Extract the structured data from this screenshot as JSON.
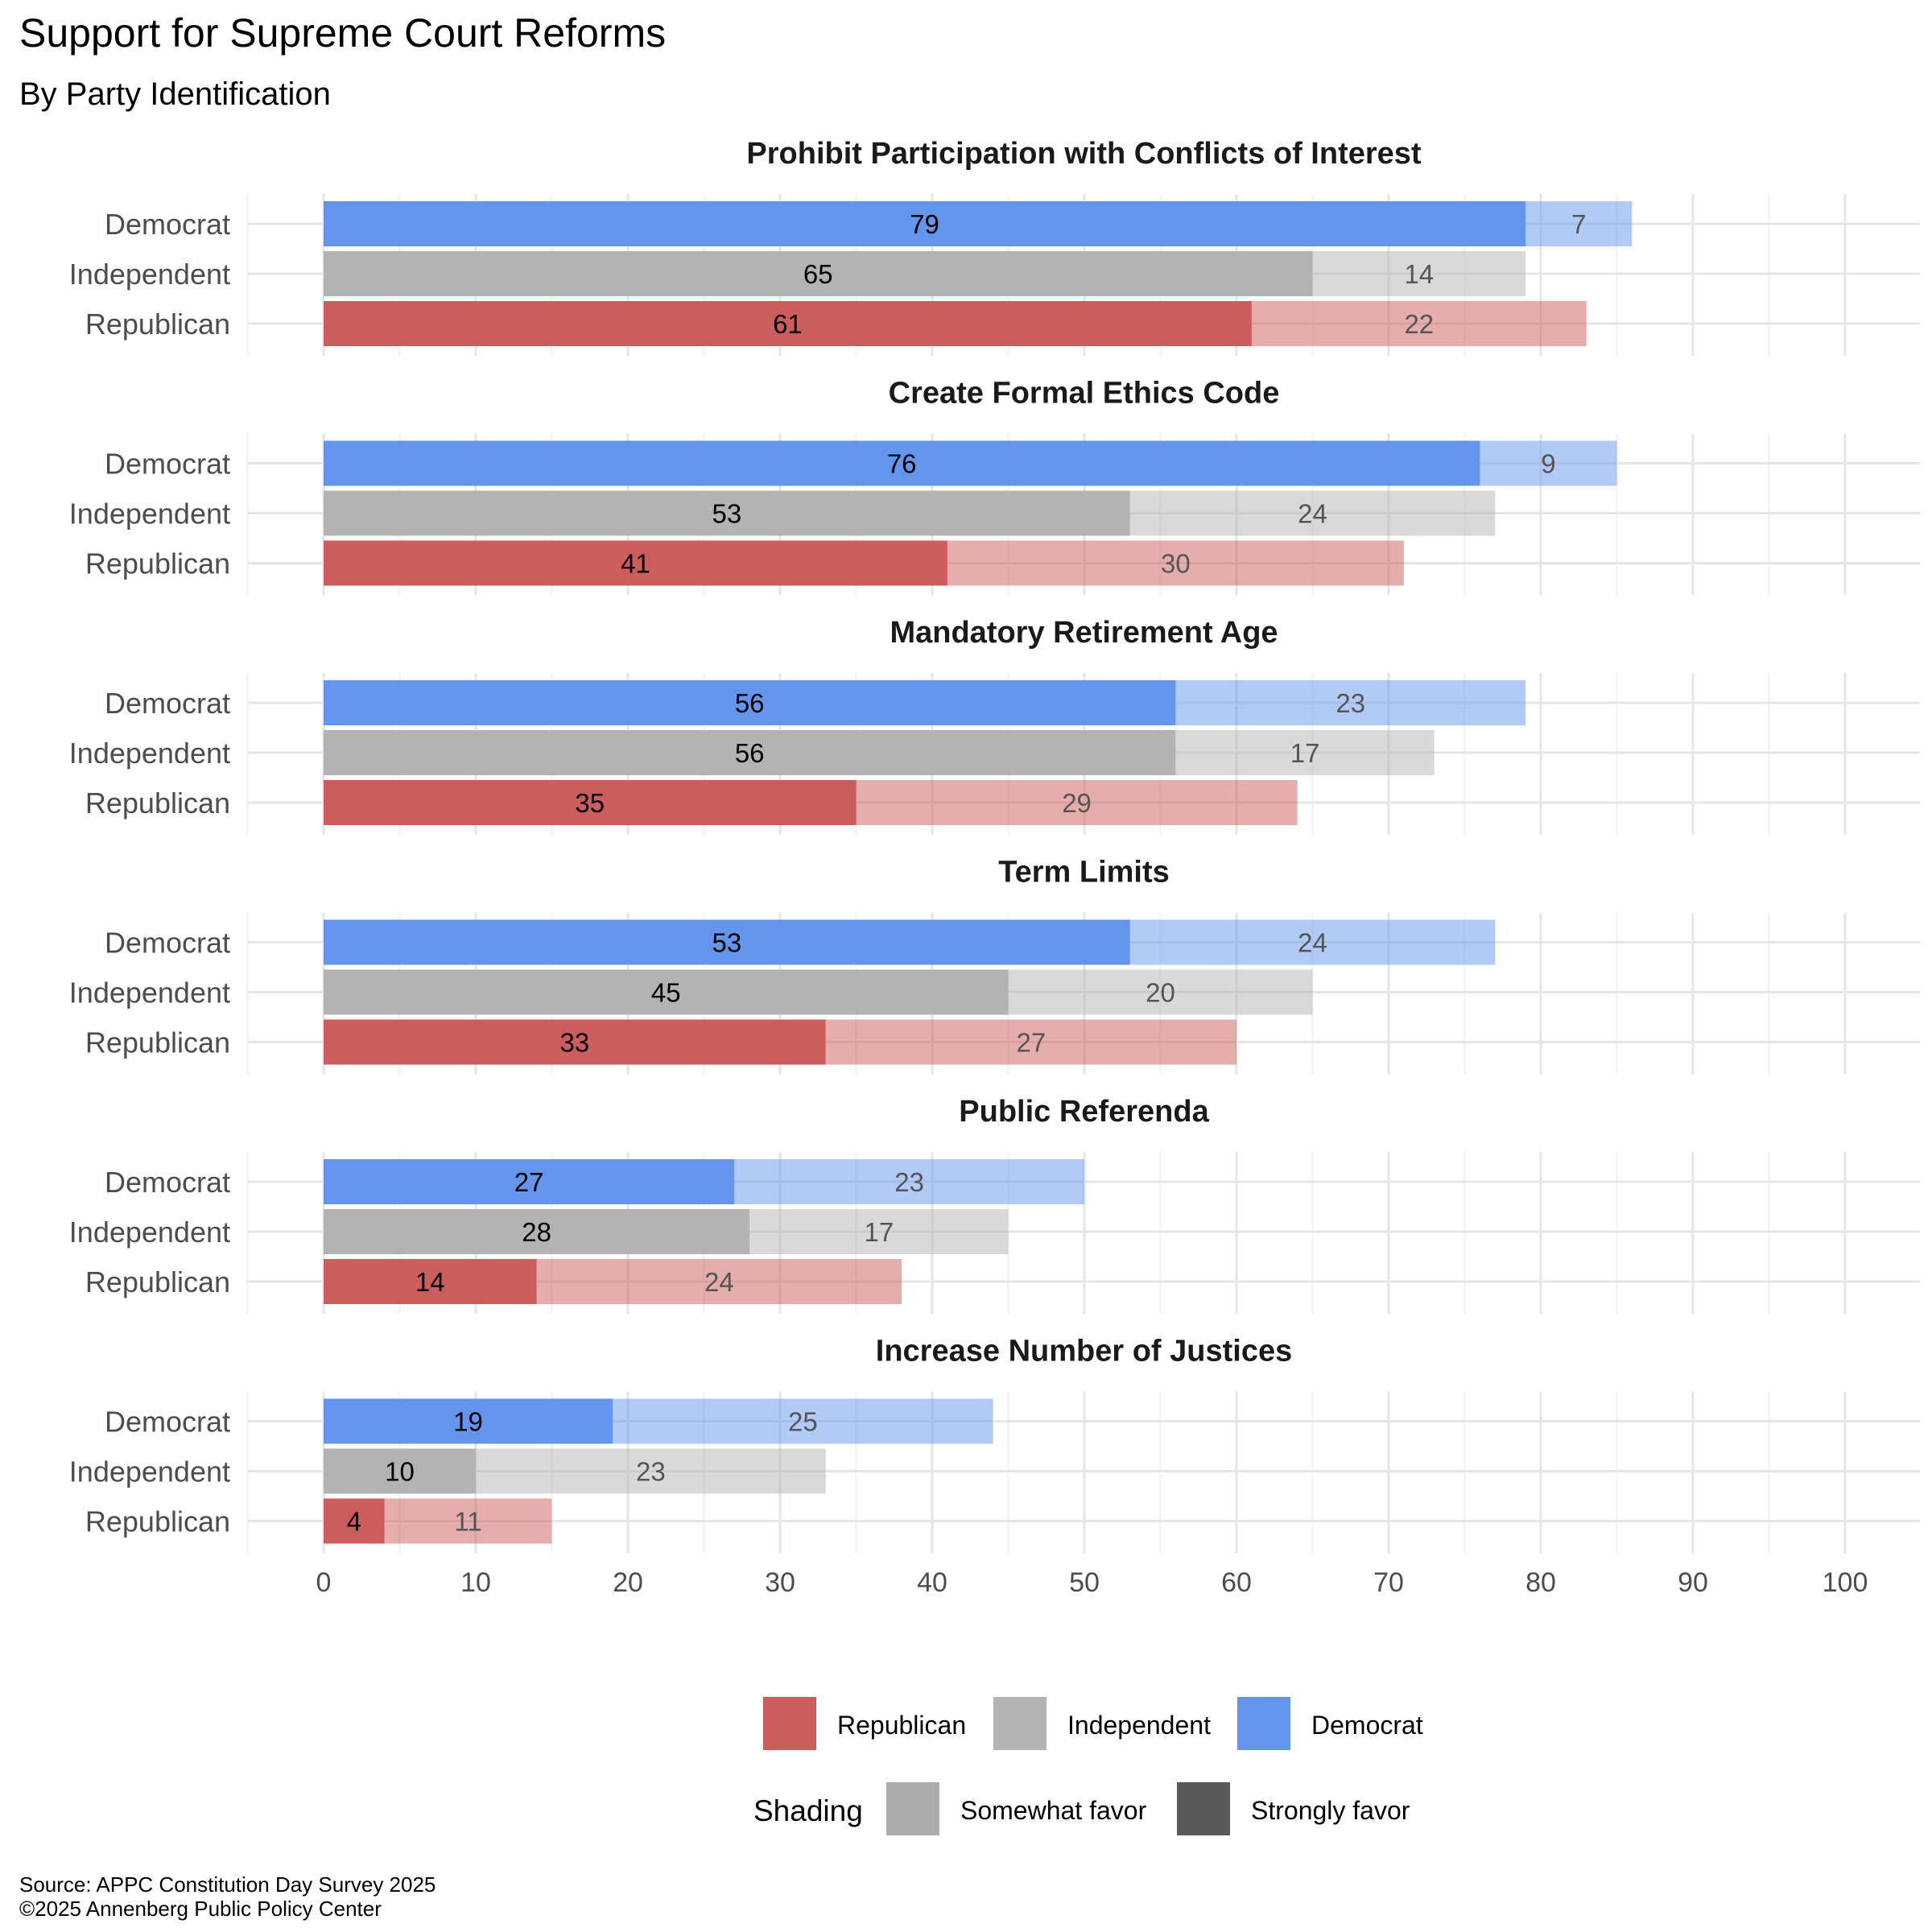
{
  "chart_data": {
    "type": "bar",
    "orientation": "horizontal",
    "stacked": true,
    "title": "Support for Supreme Court Reforms",
    "subtitle": "By Party Identification",
    "caption_lines": [
      "Source: APPC Constitution Day Survey 2025",
      "©2025 Annenberg Public Policy Center"
    ],
    "xlim": [
      0,
      100
    ],
    "x_ticks": [
      0,
      10,
      20,
      30,
      40,
      50,
      60,
      70,
      80,
      90,
      100
    ],
    "grid": true,
    "colors": {
      "Republican": "#cd5c5c",
      "Independent": "#b3b3b3",
      "Democrat": "#6495ed"
    },
    "legend": {
      "position": "bottom",
      "party_entries": [
        "Republican",
        "Independent",
        "Democrat"
      ],
      "shading_title": "Shading",
      "shading_entries": [
        {
          "label": "Somewhat favor",
          "color": "#ababab"
        },
        {
          "label": "Strongly favor",
          "color": "#595959"
        }
      ]
    },
    "categories": [
      "Democrat",
      "Independent",
      "Republican"
    ],
    "panels": [
      {
        "title": "Prohibit Participation with Conflicts of Interest",
        "strongly_favor": [
          79,
          65,
          61
        ],
        "somewhat_favor": [
          7,
          14,
          22
        ]
      },
      {
        "title": "Create Formal Ethics Code",
        "strongly_favor": [
          76,
          53,
          41
        ],
        "somewhat_favor": [
          9,
          24,
          30
        ]
      },
      {
        "title": "Mandatory Retirement Age",
        "strongly_favor": [
          56,
          56,
          35
        ],
        "somewhat_favor": [
          23,
          17,
          29
        ]
      },
      {
        "title": "Term Limits",
        "strongly_favor": [
          53,
          45,
          33
        ],
        "somewhat_favor": [
          24,
          20,
          27
        ]
      },
      {
        "title": "Public Referenda",
        "strongly_favor": [
          27,
          28,
          14
        ],
        "somewhat_favor": [
          23,
          17,
          24
        ]
      },
      {
        "title": "Increase Number of Justices",
        "strongly_favor": [
          19,
          10,
          4
        ],
        "somewhat_favor": [
          25,
          23,
          11
        ]
      }
    ]
  }
}
